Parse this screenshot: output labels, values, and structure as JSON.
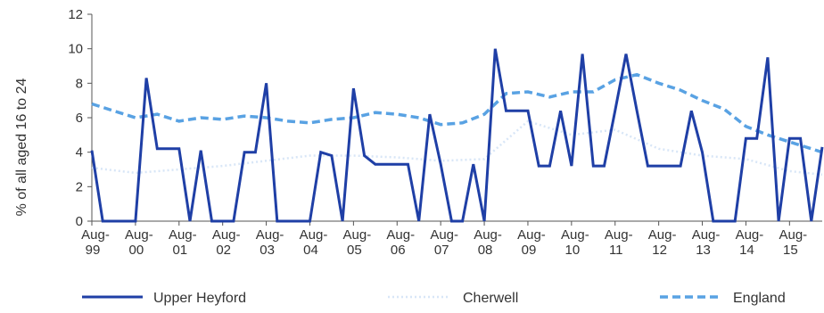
{
  "chart_data": {
    "type": "line",
    "ylabel": "% of all aged 16 to 24",
    "ylim": [
      0,
      12
    ],
    "yticks": [
      "0",
      "2",
      "4",
      "6",
      "8",
      "10",
      "12"
    ],
    "grid": false,
    "legend_position": "bottom",
    "x_tick_labels": [
      {
        "line1": "Aug-",
        "line2": "99"
      },
      {
        "line1": "Aug-",
        "line2": "00"
      },
      {
        "line1": "Aug-",
        "line2": "01"
      },
      {
        "line1": "Aug-",
        "line2": "02"
      },
      {
        "line1": "Aug-",
        "line2": "03"
      },
      {
        "line1": "Aug-",
        "line2": "04"
      },
      {
        "line1": "Aug-",
        "line2": "05"
      },
      {
        "line1": "Aug-",
        "line2": "06"
      },
      {
        "line1": "Aug-",
        "line2": "07"
      },
      {
        "line1": "Aug-",
        "line2": "08"
      },
      {
        "line1": "Aug-",
        "line2": "09"
      },
      {
        "line1": "Aug-",
        "line2": "10"
      },
      {
        "line1": "Aug-",
        "line2": "11"
      },
      {
        "line1": "Aug-",
        "line2": "12"
      },
      {
        "line1": "Aug-",
        "line2": "13"
      },
      {
        "line1": "Aug-",
        "line2": "14"
      },
      {
        "line1": "Aug-",
        "line2": "15"
      }
    ],
    "series": [
      {
        "name": "Upper Heyford",
        "color": "#1f3fa6",
        "style": "solid",
        "x": [
          0,
          1,
          2,
          3,
          4,
          5,
          6,
          7,
          8,
          9,
          10,
          11,
          12,
          13,
          14,
          15,
          16,
          17,
          18,
          19,
          20,
          21,
          22,
          23,
          24,
          25,
          26,
          27,
          28,
          29,
          30,
          31,
          32,
          33,
          34,
          35,
          36,
          37,
          38,
          39,
          40,
          41,
          42,
          43,
          44,
          45,
          46,
          47,
          48,
          49,
          50,
          51,
          52,
          53,
          54,
          55,
          56,
          57,
          58,
          59,
          60,
          61,
          62,
          63,
          64,
          65,
          66,
          67
        ],
        "values": [
          4.1,
          0,
          0,
          0,
          0,
          8.3,
          4.2,
          4.2,
          4.2,
          0,
          4.1,
          0,
          0,
          0,
          4.0,
          4.0,
          8.0,
          0,
          0,
          0,
          0,
          4.0,
          3.8,
          0,
          7.7,
          3.8,
          3.3,
          3.3,
          3.3,
          3.3,
          0,
          6.2,
          3.3,
          0,
          0,
          3.3,
          0,
          10.0,
          6.4,
          6.4,
          6.4,
          3.2,
          3.2,
          6.4,
          3.2,
          9.7,
          3.2,
          3.2,
          6.4,
          9.7,
          6.4,
          3.2,
          3.2,
          3.2,
          3.2,
          6.4,
          4.0,
          0,
          0,
          0,
          4.8,
          4.8,
          9.5,
          0,
          4.8,
          4.8,
          0,
          4.3
        ]
      },
      {
        "name": "Cherwell",
        "color": "#d8e6f7",
        "style": "dotted",
        "x": [
          0,
          4,
          8,
          12,
          16,
          20,
          24,
          28,
          32,
          36,
          40,
          44,
          48,
          52,
          56,
          60,
          64,
          67
        ],
        "values": [
          3.1,
          2.8,
          3.0,
          3.2,
          3.5,
          3.8,
          3.8,
          3.7,
          3.5,
          3.6,
          5.8,
          5.0,
          5.3,
          4.2,
          3.8,
          3.6,
          2.9,
          2.7
        ]
      },
      {
        "name": "England",
        "color": "#59a2e3",
        "style": "dashed",
        "x": [
          0,
          2,
          4,
          6,
          8,
          10,
          12,
          14,
          16,
          18,
          20,
          22,
          24,
          26,
          28,
          30,
          32,
          34,
          36,
          38,
          40,
          42,
          44,
          46,
          48,
          50,
          52,
          54,
          56,
          58,
          60,
          62,
          64,
          66,
          67
        ],
        "values": [
          6.8,
          6.4,
          6.0,
          6.2,
          5.8,
          6.0,
          5.9,
          6.1,
          6.0,
          5.8,
          5.7,
          5.9,
          6.0,
          6.3,
          6.2,
          6.0,
          5.6,
          5.7,
          6.2,
          7.4,
          7.5,
          7.2,
          7.5,
          7.5,
          8.2,
          8.5,
          8.0,
          7.6,
          7.0,
          6.5,
          5.5,
          5.0,
          4.6,
          4.2,
          4.0
        ]
      }
    ]
  }
}
